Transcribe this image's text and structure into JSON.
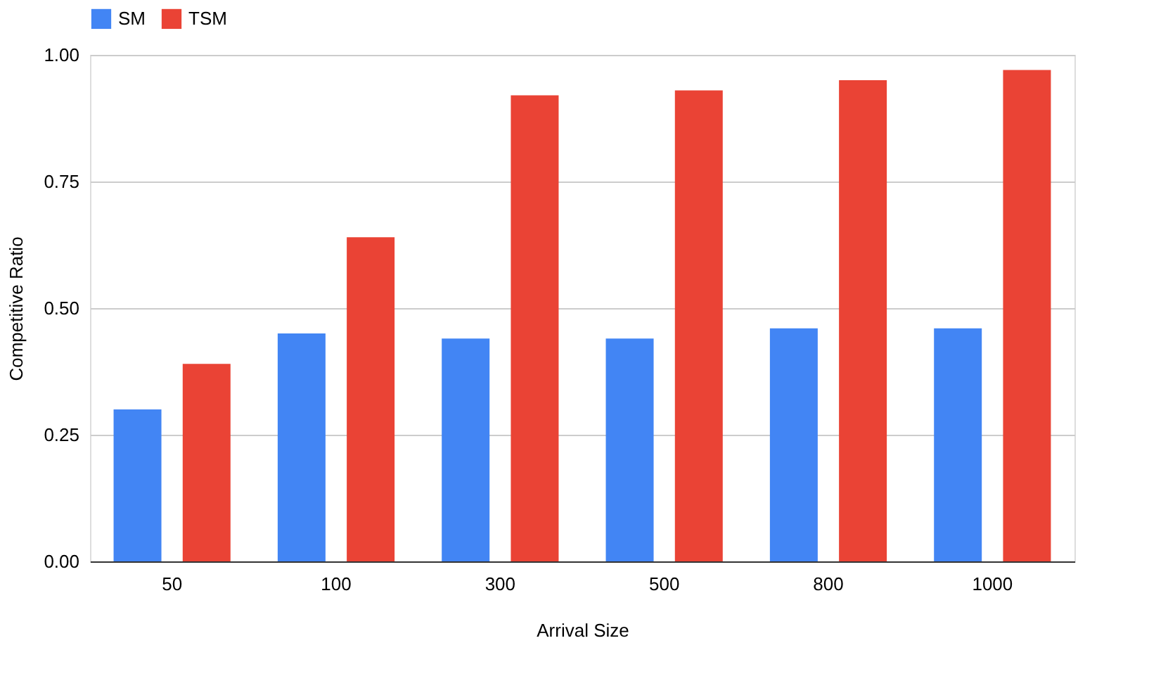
{
  "chart_data": {
    "type": "bar",
    "xlabel": "Arrival Size",
    "ylabel": "Competitive Ratio",
    "categories": [
      "50",
      "100",
      "300",
      "500",
      "800",
      "1000"
    ],
    "series": [
      {
        "name": "SM",
        "color": "#4285f4",
        "values": [
          0.3,
          0.45,
          0.44,
          0.44,
          0.46,
          0.46
        ]
      },
      {
        "name": "TSM",
        "color": "#ea4335",
        "values": [
          0.39,
          0.64,
          0.92,
          0.93,
          0.95,
          0.97
        ]
      }
    ],
    "ylim": [
      0,
      1.0
    ],
    "yticks": [
      {
        "value": 0,
        "label": "0.00"
      },
      {
        "value": 0.25,
        "label": "0.25"
      },
      {
        "value": 0.5,
        "label": "0.50"
      },
      {
        "value": 0.75,
        "label": "0.75"
      },
      {
        "value": 1.0,
        "label": "1.00"
      }
    ],
    "grid": "y",
    "legend": "top"
  }
}
